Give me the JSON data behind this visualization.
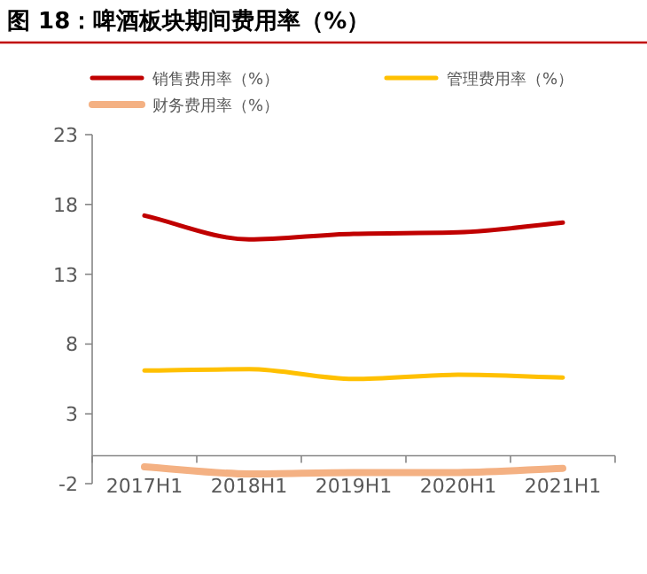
{
  "chart_data": {
    "type": "line",
    "title": "图 18：啤酒板块期间费用率（%）",
    "categories": [
      "2017H1",
      "2018H1",
      "2019H1",
      "2020H1",
      "2021H1"
    ],
    "series": [
      {
        "name": "销售费用率（%）",
        "color": "#c00000",
        "values": [
          17.2,
          15.5,
          15.9,
          16.0,
          16.7
        ]
      },
      {
        "name": "管理费用率（%）",
        "color": "#ffc000",
        "values": [
          6.1,
          6.2,
          5.5,
          5.8,
          5.6
        ]
      },
      {
        "name": "财务费用率（%）",
        "color": "#f4b183",
        "values": [
          -0.8,
          -1.3,
          -1.2,
          -1.2,
          -0.9
        ]
      }
    ],
    "ylim": [
      -2,
      23
    ],
    "yticks": [
      -2,
      3,
      8,
      13,
      18,
      23
    ],
    "grid": false,
    "legend": "top",
    "marker": "none",
    "line_style": "solid"
  }
}
